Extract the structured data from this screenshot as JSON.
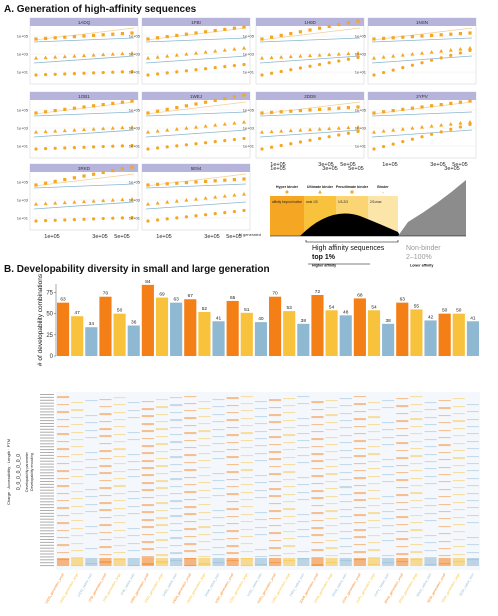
{
  "sections": {
    "a_title": "A. Generation of high-affinity sequences",
    "b_title": "B. Developability diversity in small and large generation"
  },
  "panel_a": {
    "panels": [
      "1ADQ",
      "1FBI",
      "1H0D",
      "1NSN",
      "1OB1",
      "1WEJ",
      "2DD8",
      "2YPV",
      "3RKD",
      "5E94"
    ],
    "x_ticks": [
      "1e+05",
      "3e+05",
      "5e+05"
    ],
    "y_ticks": [
      "1e+05",
      "1e+03",
      "1e+01"
    ],
    "x_label": "N generated",
    "legend": {
      "categories": [
        "Hyper binder",
        "Ultimate binder",
        "Penultimate binder",
        "Binder"
      ],
      "sub_labels": [
        "affinity beyond native",
        "rank 1/3",
        "1/3-2/3",
        "2/3-max"
      ],
      "high_affinity": "High affinity sequences",
      "top": "top 1%",
      "non_binder": "Non-binder",
      "non_binder_range": "2–100%",
      "higher_affinity": "Higher affinity",
      "lower_affinity": "Lower affinity",
      "axis_ticks": [
        "1e+05",
        "3e+05",
        "5e+05"
      ]
    },
    "colors": {
      "header": "#b7b4dc",
      "marker": "#f5a623",
      "line": "#f2cf98",
      "flat": "#8ab6cf"
    }
  },
  "panel_b": {
    "ylabel": "# of developability combinations",
    "heat_ylabel": "Charge · Accessibility · Length · PTM",
    "heat_ylabel2": "Developability parameter",
    "heat_ylabel3": "Developability encoding",
    "heat_digits": "0_0_0_0_0_0_0",
    "colors": {
      "small": "#f57f17",
      "medium": "#f5a623",
      "large": "#f9c23c",
      "base": "#8fb8d3"
    }
  },
  "chart_data": {
    "type": "bar",
    "title": "Developability diversity in small and large generation",
    "ylabel": "# of developability combinations",
    "ylim": [
      0,
      85
    ],
    "y_ticks": [
      0,
      25,
      50,
      75
    ],
    "categories": [
      "1ADQ_generation_small",
      "1ADQ_generation_large",
      "1ADQ_native_train",
      "1FBI_generation_small",
      "1FBI_generation_large",
      "1FBI_native_train",
      "1H0D_generation_small",
      "1H0D_generation_large",
      "1H0D_native_train",
      "1NSN_generation_small",
      "1NSN_generation_large",
      "1NSN_native_train",
      "1OB1_generation_small",
      "1OB1_generation_large",
      "1OB1_native_train",
      "1WEJ_generation_small",
      "1WEJ_generation_large",
      "1WEJ_native_train",
      "2DD8_generation_small",
      "2DD8_generation_large",
      "2DD8_native_train",
      "2YPV_generation_small",
      "2YPV_generation_large",
      "2YPV_native_train",
      "3RKD_generation_small",
      "3RKD_generation_large",
      "3RKD_native_train",
      "5E94_generation_small",
      "5E94_generation_large",
      "5E94_native_train"
    ],
    "values": [
      63,
      47,
      34,
      70,
      50,
      36,
      84,
      69,
      63,
      67,
      52,
      41,
      65,
      51,
      40,
      70,
      53,
      38,
      72,
      54,
      48,
      68,
      54,
      38,
      63,
      55,
      42,
      50,
      50,
      41
    ],
    "bar_groups": [
      "small",
      "large",
      "base",
      "small",
      "large",
      "base",
      "small",
      "large",
      "base",
      "small",
      "large",
      "base",
      "small",
      "large",
      "base",
      "small",
      "large",
      "base",
      "small",
      "large",
      "base",
      "small",
      "large",
      "base",
      "small",
      "large",
      "base",
      "small",
      "large",
      "base"
    ]
  }
}
